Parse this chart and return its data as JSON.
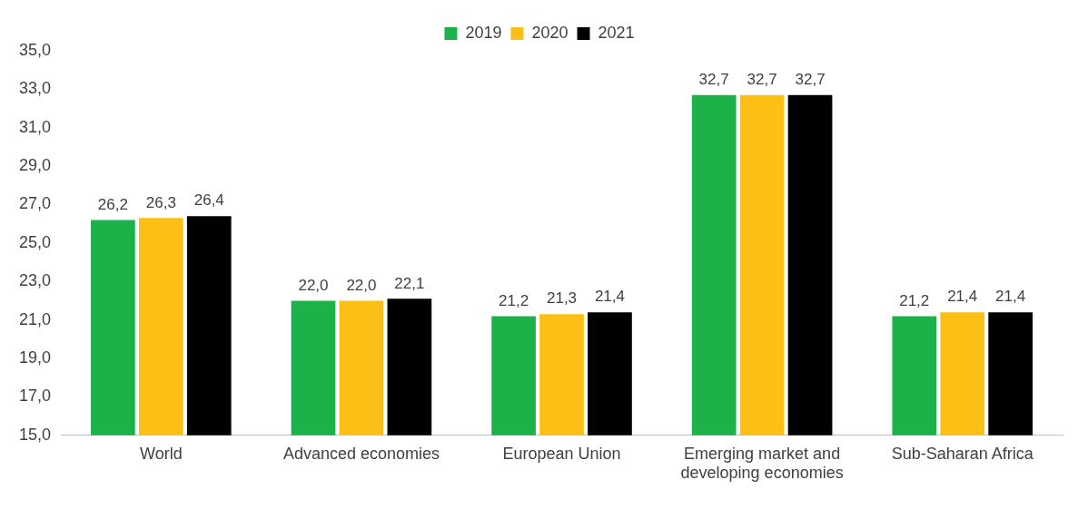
{
  "chart_data": {
    "type": "bar",
    "categories": [
      "World",
      "Advanced economies",
      "European Union",
      "Emerging market and developing economies",
      "Sub-Saharan Africa"
    ],
    "series": [
      {
        "name": "2019",
        "color": "#1db249",
        "values": [
          26.2,
          22.0,
          21.2,
          32.7,
          21.2
        ],
        "value_labels": [
          "26,2",
          "22,0",
          "21,2",
          "32,7",
          "21,2"
        ]
      },
      {
        "name": "2020",
        "color": "#fbbf16",
        "values": [
          26.3,
          22.0,
          21.3,
          32.7,
          21.4
        ],
        "value_labels": [
          "26,3",
          "22,0",
          "21,3",
          "32,7",
          "21,4"
        ]
      },
      {
        "name": "2021",
        "color": "#000000",
        "values": [
          26.4,
          22.1,
          21.4,
          32.7,
          21.4
        ],
        "value_labels": [
          "26,4",
          "22,1",
          "21,4",
          "32,7",
          "21,4"
        ]
      }
    ],
    "ylim": [
      15,
      35
    ],
    "yticks": [
      {
        "value": 15,
        "label": "15,0"
      },
      {
        "value": 17,
        "label": "17,0"
      },
      {
        "value": 19,
        "label": "19,0"
      },
      {
        "value": 21,
        "label": "21,0"
      },
      {
        "value": 23,
        "label": "23,0"
      },
      {
        "value": 25,
        "label": "25,0"
      },
      {
        "value": 27,
        "label": "27,0"
      },
      {
        "value": 29,
        "label": "29,0"
      },
      {
        "value": 31,
        "label": "31,0"
      },
      {
        "value": 33,
        "label": "33,0"
      },
      {
        "value": 35,
        "label": "35,0"
      }
    ],
    "grid": false,
    "legend": "top"
  }
}
